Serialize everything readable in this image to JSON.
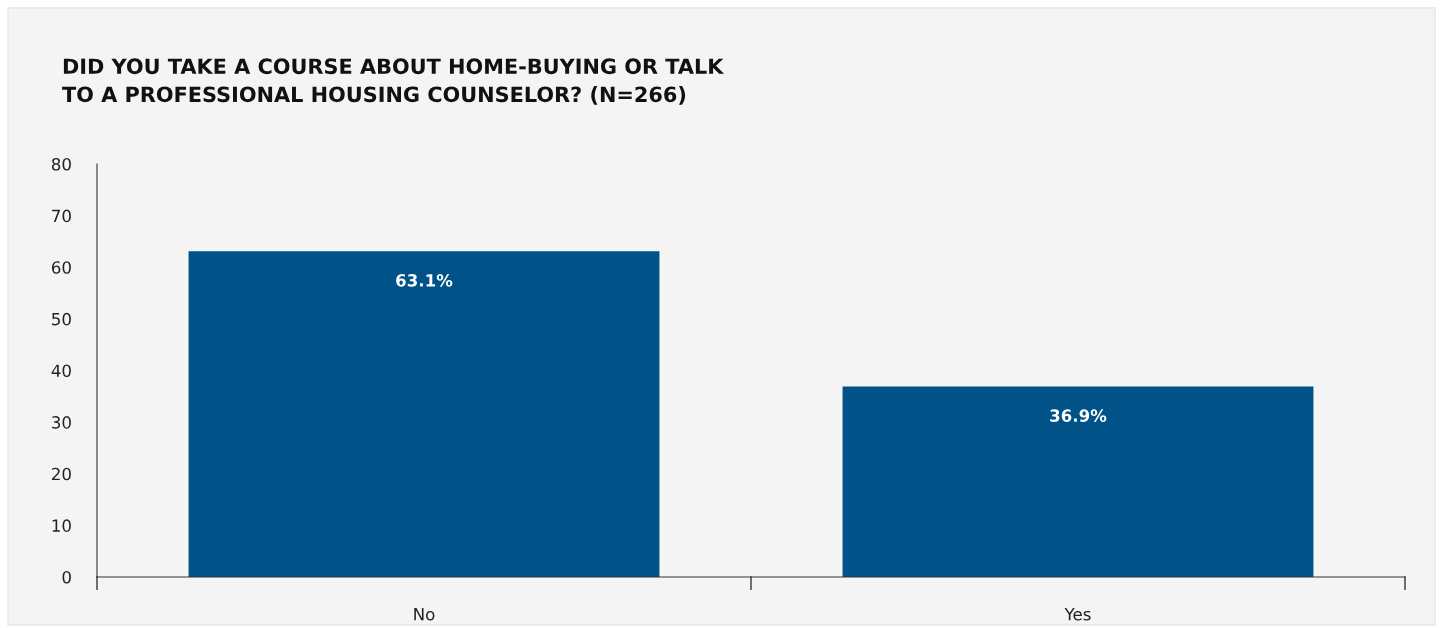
{
  "chart_data": {
    "type": "bar",
    "title": "DID YOU TAKE A COURSE ABOUT HOME-BUYING OR TALK\nTO A PROFESSIONAL HOUSING COUNSELOR? (N=266)",
    "categories": [
      "No",
      "Yes"
    ],
    "values": [
      63.1,
      36.9
    ],
    "value_labels": [
      "63.1%",
      "36.9%"
    ],
    "color": "#005288",
    "ylim": [
      0,
      80
    ],
    "yticks": [
      0,
      10,
      20,
      30,
      40,
      50,
      60,
      70,
      80
    ],
    "grid": false
  }
}
